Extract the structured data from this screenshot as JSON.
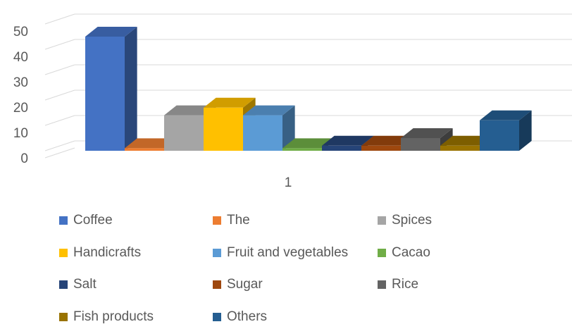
{
  "chart_data": {
    "type": "bar",
    "style": "3d-clustered-column",
    "categories": [
      "1"
    ],
    "series": [
      {
        "name": "Coffee",
        "values": [
          45
        ],
        "color": "#4472C4"
      },
      {
        "name": "The",
        "values": [
          1
        ],
        "color": "#ED7D31"
      },
      {
        "name": "Spices",
        "values": [
          14
        ],
        "color": "#A5A5A5"
      },
      {
        "name": "Handicrafts",
        "values": [
          17
        ],
        "color": "#FFC000"
      },
      {
        "name": "Fruit and vegetables",
        "values": [
          14
        ],
        "color": "#5B9BD5"
      },
      {
        "name": "Cacao",
        "values": [
          1
        ],
        "color": "#70AD47"
      },
      {
        "name": "Salt",
        "values": [
          2
        ],
        "color": "#264478"
      },
      {
        "name": "Sugar",
        "values": [
          2
        ],
        "color": "#9E480E"
      },
      {
        "name": "Rice",
        "values": [
          5
        ],
        "color": "#636363"
      },
      {
        "name": "Fish products",
        "values": [
          2
        ],
        "color": "#997300"
      },
      {
        "name": "Others",
        "values": [
          12
        ],
        "color": "#255E91"
      }
    ],
    "y_ticks": [
      "0",
      "10",
      "20",
      "30",
      "40",
      "50"
    ],
    "ylim": [
      0,
      60
    ],
    "grid": true,
    "legend_position": "bottom"
  }
}
